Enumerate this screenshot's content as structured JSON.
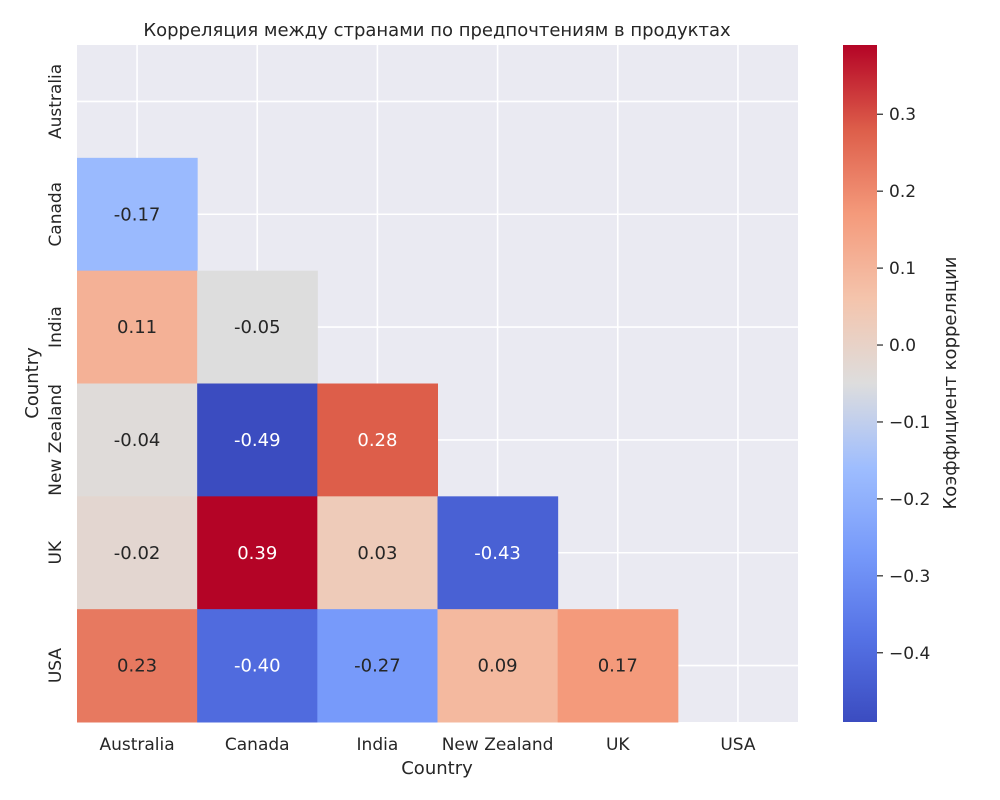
{
  "chart_data": {
    "type": "heatmap",
    "title": "Корреляция между странами по предпочтениям в продуктах",
    "xlabel": "Country",
    "ylabel": "Country",
    "x_categories": [
      "Australia",
      "Canada",
      "India",
      "New Zealand",
      "UK",
      "USA"
    ],
    "y_categories": [
      "Australia",
      "Canada",
      "India",
      "New Zealand",
      "UK",
      "USA"
    ],
    "mask": "upper-triangle-including-diagonal",
    "values": [
      [
        null,
        null,
        null,
        null,
        null,
        null
      ],
      [
        -0.17,
        null,
        null,
        null,
        null,
        null
      ],
      [
        0.11,
        -0.05,
        null,
        null,
        null,
        null
      ],
      [
        -0.04,
        -0.49,
        0.28,
        null,
        null,
        null
      ],
      [
        -0.02,
        0.39,
        0.03,
        -0.43,
        null,
        null
      ],
      [
        0.23,
        -0.4,
        -0.27,
        0.09,
        0.17,
        null
      ]
    ],
    "value_labels": [
      [
        null,
        null,
        null,
        null,
        null,
        null
      ],
      [
        "-0.17",
        null,
        null,
        null,
        null,
        null
      ],
      [
        "0.11",
        "-0.05",
        null,
        null,
        null,
        null
      ],
      [
        "-0.04",
        "-0.49",
        "0.28",
        null,
        null,
        null
      ],
      [
        "-0.02",
        "0.39",
        "0.03",
        "-0.43",
        null,
        null
      ],
      [
        "0.23",
        "-0.40",
        "-0.27",
        "0.09",
        "0.17",
        null
      ]
    ],
    "colorbar": {
      "label": "Коэффициент корреляции",
      "colormap": "coolwarm",
      "vmin": -0.49,
      "vmax": 0.39,
      "ticks": [
        0.3,
        0.2,
        0.1,
        0.0,
        -0.1,
        -0.2,
        -0.3,
        -0.4
      ],
      "tick_labels": [
        "0.3",
        "0.2",
        "0.1",
        "0.0",
        "−0.1",
        "−0.2",
        "−0.3",
        "−0.4"
      ]
    },
    "grid": true
  }
}
